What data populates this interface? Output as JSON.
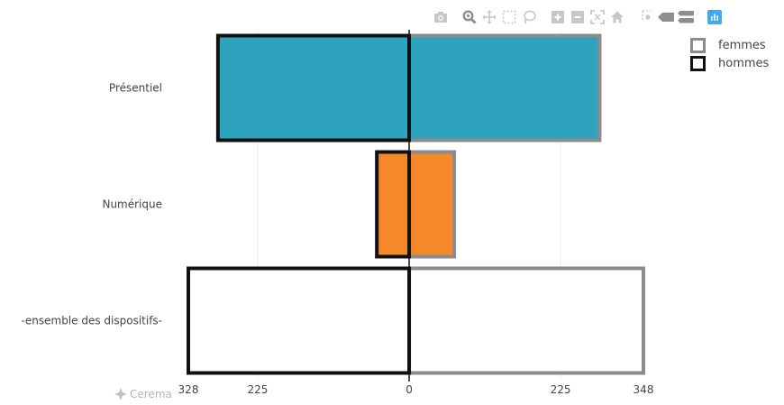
{
  "chart_data": {
    "type": "bar",
    "orientation": "horizontal",
    "categories": [
      "Présentiel",
      "Numérique",
      "-ensemble des dispositifs-"
    ],
    "category_colors": [
      "#2ea3bd",
      "#f5892a",
      "#ffffff"
    ],
    "series": [
      {
        "name": "femmes",
        "outline_color": "#8c8c8c",
        "side": "right",
        "values": [
          283,
          67,
          348
        ]
      },
      {
        "name": "hommes",
        "outline_color": "#111111",
        "side": "left",
        "values": [
          284,
          48,
          328
        ]
      }
    ],
    "x_ticks": [
      {
        "label": "328",
        "value": -328
      },
      {
        "label": "225",
        "value": -225
      },
      {
        "label": "0",
        "value": 0
      },
      {
        "label": "225",
        "value": 225
      },
      {
        "label": "348",
        "value": 348
      }
    ],
    "xlim": [
      -328,
      348
    ],
    "grid": true,
    "legend_placement": "top-right"
  },
  "legend": {
    "items": [
      {
        "label": "femmes",
        "color": "#8c8c8c"
      },
      {
        "label": "hommes",
        "color": "#111111"
      }
    ]
  },
  "modebar": {
    "icons": [
      "camera-icon",
      "zoom-icon",
      "pan-icon",
      "box-select-icon",
      "lasso-icon",
      "zoom-in-icon",
      "zoom-out-icon",
      "autoscale-icon",
      "reset-axes-icon",
      "spike-lines-icon",
      "hover-closest-icon",
      "hover-compare-icon",
      "plotly-logo-icon"
    ]
  },
  "watermark": {
    "text": "Cerema"
  }
}
